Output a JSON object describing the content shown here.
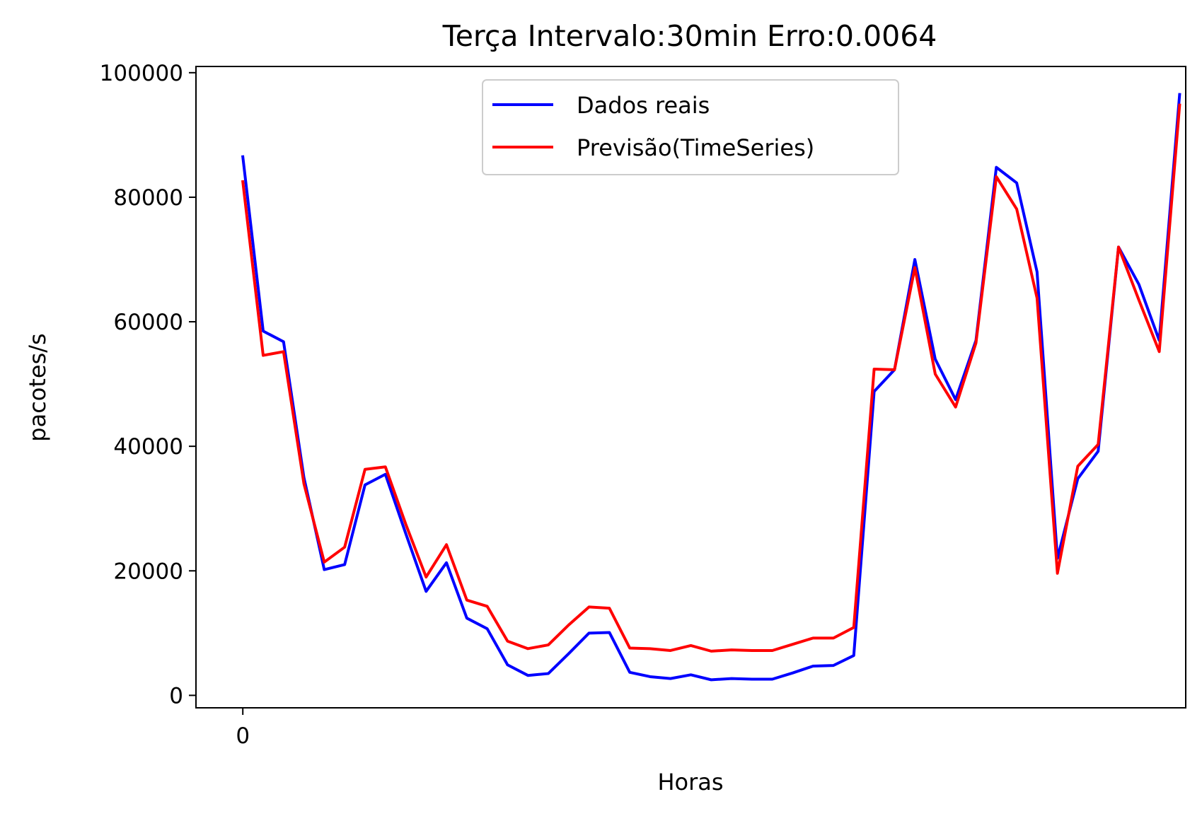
{
  "chart_data": {
    "type": "line",
    "title": "Terça Intervalo:30min Erro:0.0064",
    "xlabel": "Horas",
    "ylabel": "pacotes/s",
    "x_ticks": [
      0
    ],
    "x_tick_labels": [
      "0"
    ],
    "xlim": [
      -2.3,
      46.3
    ],
    "y_ticks": [
      0,
      20000,
      40000,
      60000,
      80000,
      100000
    ],
    "y_tick_labels": [
      "0",
      "20000",
      "40000",
      "60000",
      "80000",
      "100000"
    ],
    "ylim": [
      -2000,
      101000
    ],
    "grid": false,
    "legend_position": "top-center",
    "series": [
      {
        "name": "Dados reais",
        "color": "#0000ff",
        "values": [
          86500,
          58500,
          56800,
          35000,
          20200,
          21000,
          33800,
          35500,
          26000,
          16700,
          21300,
          12400,
          10700,
          4900,
          3200,
          3500,
          6700,
          10000,
          10100,
          3700,
          3000,
          2700,
          3300,
          2500,
          2700,
          2600,
          2600,
          3600,
          4700,
          4800,
          6400,
          48800,
          52300,
          70000,
          54000,
          47500,
          57000,
          84800,
          82300,
          68000,
          22000,
          34800,
          39200,
          72000,
          66000,
          57000,
          96500
        ]
      },
      {
        "name": "Previsão(TimeSeries)",
        "color": "#ff0000",
        "values": [
          82500,
          54600,
          55200,
          34000,
          21400,
          23800,
          36300,
          36700,
          27500,
          19000,
          24200,
          15300,
          14300,
          8700,
          7500,
          8100,
          11300,
          14200,
          14000,
          7600,
          7500,
          7200,
          8000,
          7100,
          7300,
          7200,
          7200,
          8200,
          9200,
          9200,
          10900,
          52400,
          52300,
          68700,
          51600,
          46300,
          56600,
          83300,
          78100,
          63800,
          19600,
          36800,
          40300,
          72000,
          63500,
          55200,
          94800
        ]
      }
    ]
  }
}
